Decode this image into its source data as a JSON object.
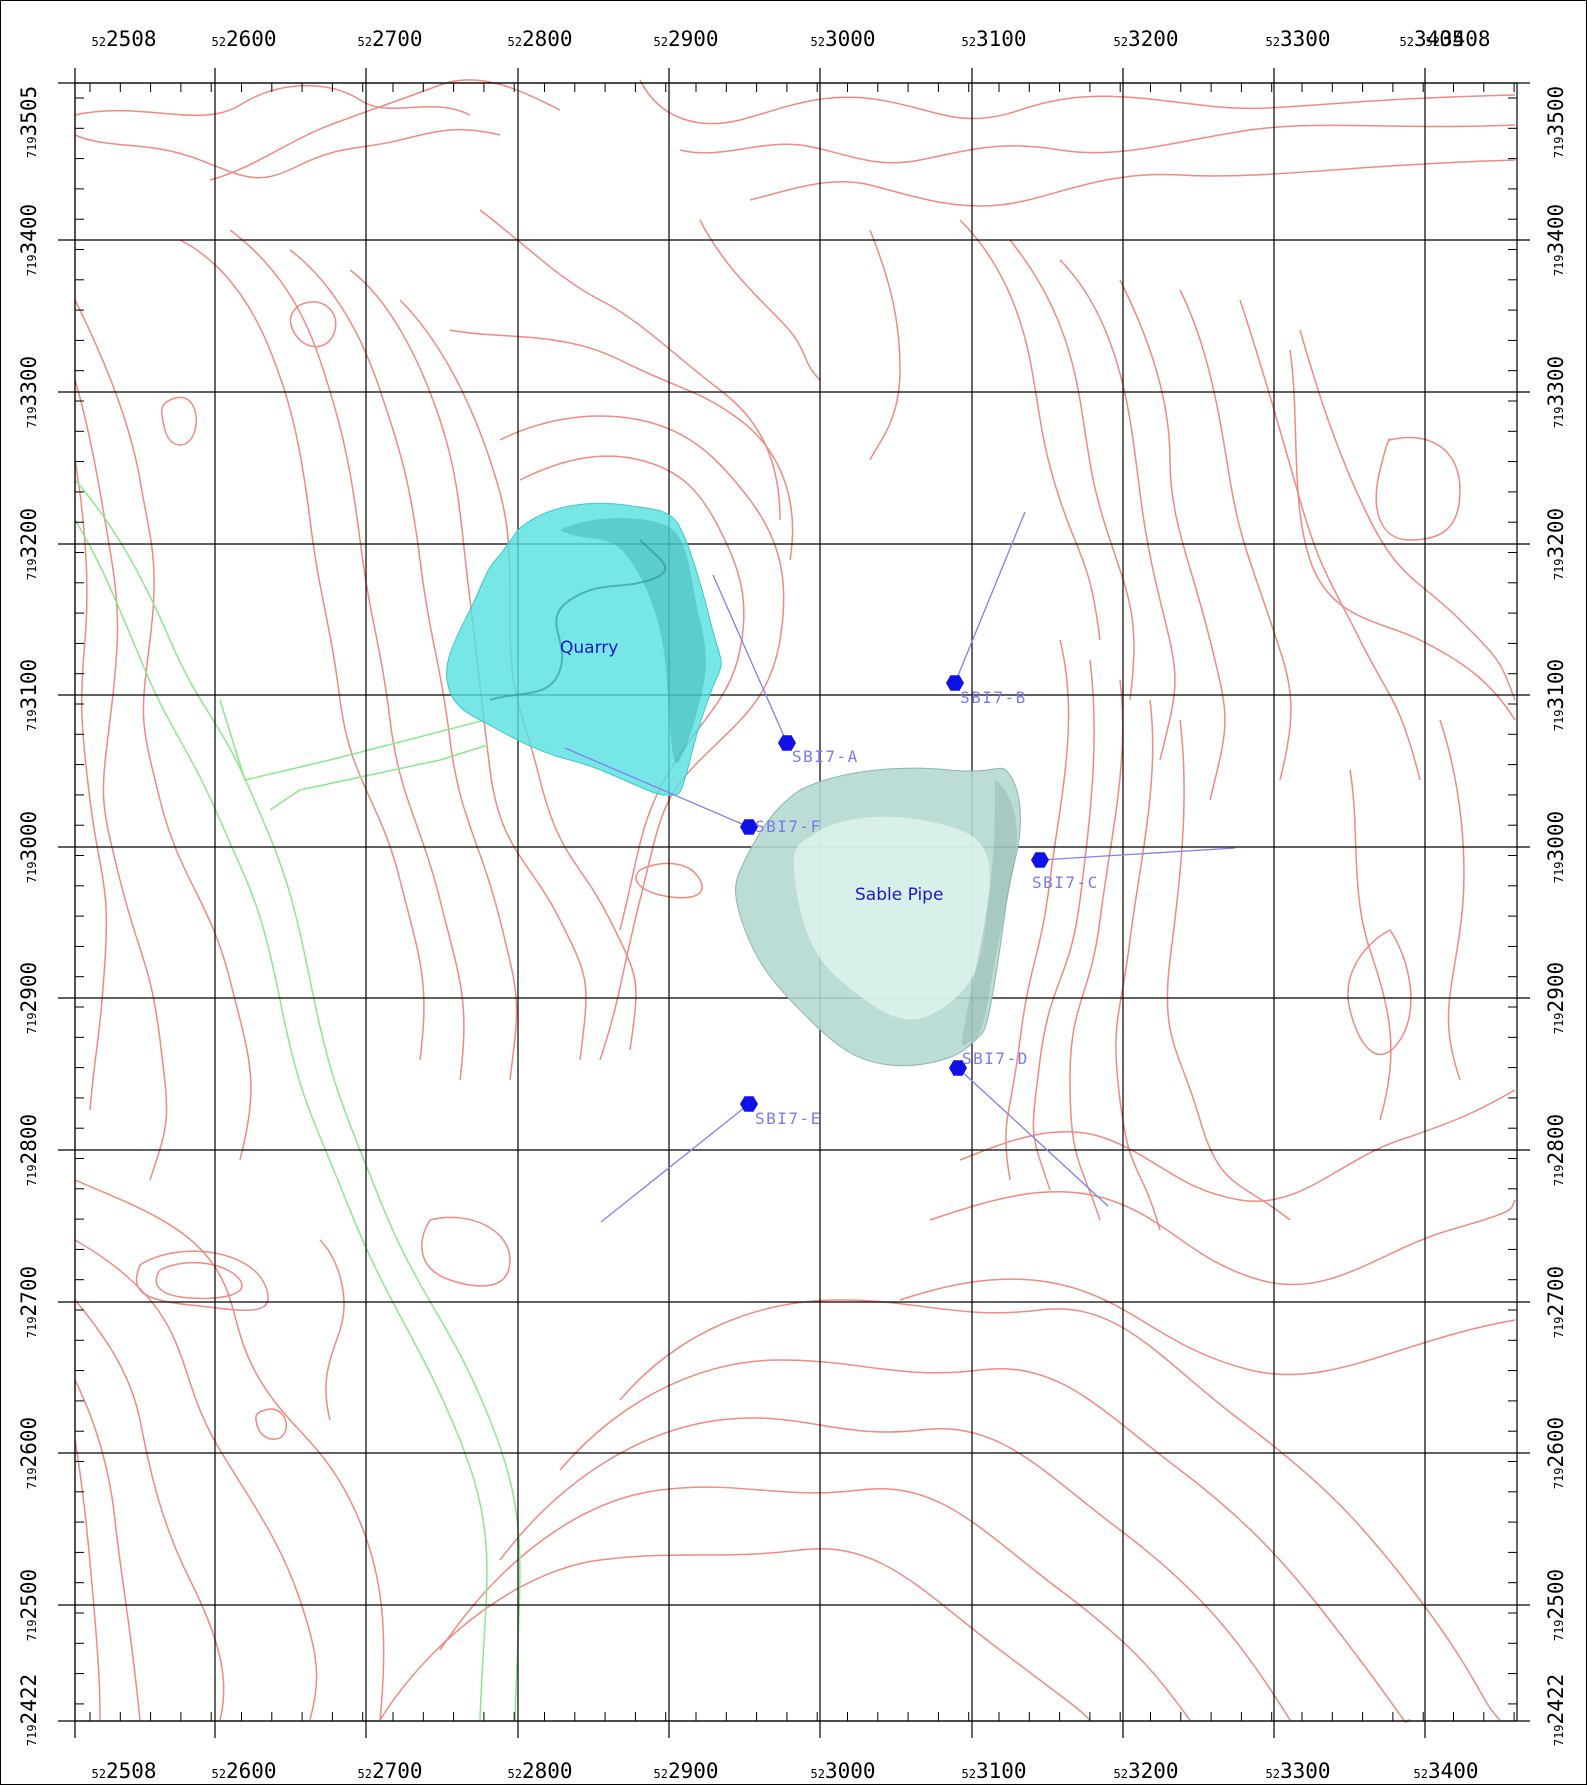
{
  "map": {
    "axes": {
      "top": [
        "522508",
        "522600",
        "522700",
        "522800",
        "522900",
        "523000",
        "523100",
        "523200",
        "523300",
        "523405",
        "523408"
      ],
      "bottom": [
        "522508",
        "522600",
        "522700",
        "522800",
        "522900",
        "523000",
        "523100",
        "523200",
        "523300",
        "523400"
      ],
      "left": [
        "7193505",
        "7193400",
        "7193300",
        "7193200",
        "7193100",
        "7193000",
        "7192900",
        "7192800",
        "7192700",
        "7192600",
        "7192500",
        "7192422"
      ],
      "right": [
        "7193500",
        "7193400",
        "7193300",
        "7193200",
        "7193100",
        "7193000",
        "7192900",
        "7192800",
        "7192700",
        "7192600",
        "7192500",
        "7192422"
      ]
    },
    "bodies": {
      "quarry": "Quarry",
      "sable_pipe": "Sable Pipe"
    },
    "drillholes": [
      {
        "id": "SB17-A",
        "label": "SBI7-A"
      },
      {
        "id": "SB17-B",
        "label": "SBI7-B"
      },
      {
        "id": "SB17-C",
        "label": "SBI7-C"
      },
      {
        "id": "SB17-D",
        "label": "SBI7-D"
      },
      {
        "id": "SB17-E",
        "label": "SBI7-E"
      },
      {
        "id": "SB17-F",
        "label": "SBI7-F"
      }
    ],
    "colors": {
      "contour": "#f08a82",
      "road": "#8be88b",
      "grid": "#000000",
      "quarry_fill": "#55e0e0",
      "pipe_fill": "#b3d8d0",
      "collar": "#1010e8",
      "trace": "#8080f0",
      "label": "#7b7bf0",
      "body_label": "#1a1acc"
    }
  }
}
